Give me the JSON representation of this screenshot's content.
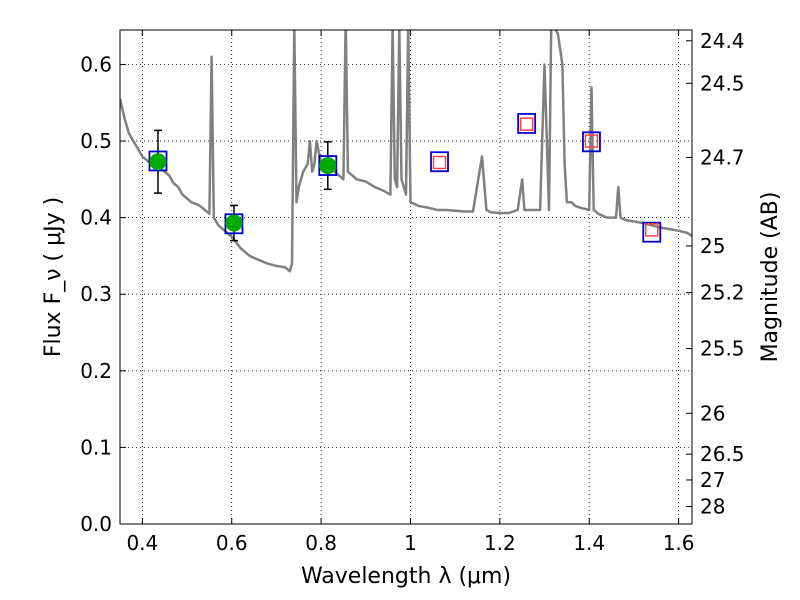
{
  "chart_data": {
    "type": "scatter",
    "xlabel": "Wavelength  λ (μm)",
    "ylabel": "Flux  F_ν  ( μJy )",
    "ylabel_right": "Magnitude (AB)",
    "xlim": [
      0.35,
      1.63
    ],
    "ylim": [
      0.0,
      0.645
    ],
    "grid": true,
    "x_ticks": [
      0.4,
      0.6,
      0.8,
      1.0,
      1.2,
      1.4,
      1.6
    ],
    "x_tick_labels": [
      "0.4",
      "0.6",
      "0.8",
      "1",
      "1.2",
      "1.4",
      "1.6"
    ],
    "y_ticks": [
      0.0,
      0.1,
      0.2,
      0.3,
      0.4,
      0.5,
      0.6
    ],
    "y_tick_labels": [
      "0.0",
      "0.1",
      "0.2",
      "0.3",
      "0.4",
      "0.5",
      "0.6"
    ],
    "right_ticks": [
      {
        "label": "24.4",
        "flux": 0.6309
      },
      {
        "label": "24.5",
        "flux": 0.5754
      },
      {
        "label": "24.7",
        "flux": 0.4786
      },
      {
        "label": "25",
        "flux": 0.3631
      },
      {
        "label": "25.2",
        "flux": 0.302
      },
      {
        "label": "25.5",
        "flux": 0.2291
      },
      {
        "label": "26",
        "flux": 0.1445
      },
      {
        "label": "26.5",
        "flux": 0.0912
      },
      {
        "label": "27",
        "flux": 0.0575
      },
      {
        "label": "28",
        "flux": 0.0229
      }
    ],
    "colors": {
      "model": "#808080",
      "observed": "#00aa00",
      "model_box": "#0000cc",
      "upper_box": "#ff4444",
      "errorbar": "#000000"
    },
    "series": [
      {
        "kind": "line",
        "x": [
          0.35,
          0.36,
          0.37,
          0.38,
          0.39,
          0.4,
          0.41,
          0.42,
          0.43,
          0.44,
          0.45,
          0.46,
          0.47,
          0.48,
          0.49,
          0.5,
          0.51,
          0.52,
          0.53,
          0.54,
          0.55,
          0.555,
          0.56,
          0.565,
          0.57,
          0.58,
          0.59,
          0.6,
          0.62,
          0.64,
          0.66,
          0.68,
          0.7,
          0.72,
          0.73,
          0.735,
          0.74,
          0.745,
          0.75,
          0.76,
          0.77,
          0.775,
          0.78,
          0.785,
          0.79,
          0.8,
          0.81,
          0.82,
          0.83,
          0.84,
          0.85,
          0.855,
          0.86,
          0.87,
          0.88,
          0.9,
          0.92,
          0.94,
          0.955,
          0.96,
          0.965,
          0.97,
          0.975,
          0.98,
          0.985,
          0.99,
          0.995,
          1.0,
          1.02,
          1.04,
          1.06,
          1.08,
          1.1,
          1.12,
          1.14,
          1.16,
          1.17,
          1.18,
          1.2,
          1.22,
          1.24,
          1.25,
          1.255,
          1.26,
          1.28,
          1.29,
          1.3,
          1.31,
          1.315,
          1.32,
          1.33,
          1.34,
          1.345,
          1.35,
          1.36,
          1.37,
          1.38,
          1.4,
          1.405,
          1.41,
          1.415,
          1.42,
          1.44,
          1.46,
          1.465,
          1.47,
          1.48,
          1.5,
          1.52,
          1.54,
          1.56,
          1.58,
          1.6,
          1.62,
          1.63
        ],
        "y": [
          0.555,
          0.53,
          0.51,
          0.5,
          0.49,
          0.48,
          0.475,
          0.47,
          0.468,
          0.465,
          0.46,
          0.455,
          0.445,
          0.44,
          0.43,
          0.425,
          0.42,
          0.418,
          0.415,
          0.41,
          0.405,
          0.61,
          0.4,
          0.395,
          0.39,
          0.385,
          0.38,
          0.375,
          0.36,
          0.35,
          0.345,
          0.34,
          0.337,
          0.335,
          0.33,
          0.34,
          0.65,
          0.42,
          0.44,
          0.46,
          0.47,
          0.5,
          0.46,
          0.47,
          0.5,
          0.47,
          0.465,
          0.47,
          0.46,
          0.455,
          0.45,
          0.66,
          0.46,
          0.455,
          0.45,
          0.447,
          0.44,
          0.435,
          0.43,
          0.65,
          0.45,
          0.44,
          0.65,
          0.45,
          0.44,
          0.43,
          0.65,
          0.42,
          0.415,
          0.413,
          0.41,
          0.41,
          0.409,
          0.408,
          0.408,
          0.48,
          0.41,
          0.407,
          0.406,
          0.406,
          0.41,
          0.45,
          0.41,
          0.41,
          0.41,
          0.41,
          0.6,
          0.41,
          0.65,
          0.65,
          0.64,
          0.6,
          0.47,
          0.42,
          0.42,
          0.415,
          0.413,
          0.41,
          0.57,
          0.41,
          0.408,
          0.405,
          0.4,
          0.4,
          0.44,
          0.4,
          0.397,
          0.395,
          0.393,
          0.39,
          0.387,
          0.385,
          0.383,
          0.38,
          0.376
        ]
      },
      {
        "kind": "observed",
        "x": [
          0.435,
          0.605,
          0.815
        ],
        "y": [
          0.473,
          0.393,
          0.468
        ],
        "yerr": [
          0.041,
          0.023,
          0.031
        ]
      },
      {
        "kind": "model_box",
        "x": [
          0.435,
          0.605,
          0.815,
          1.065,
          1.26,
          1.405,
          1.54
        ],
        "y": [
          0.474,
          0.392,
          0.468,
          0.473,
          0.523,
          0.499,
          0.381
        ]
      },
      {
        "kind": "upper_box",
        "x": [
          1.065,
          1.26,
          1.405,
          1.54
        ],
        "y": [
          0.472,
          0.522,
          0.5,
          0.384
        ]
      }
    ]
  }
}
